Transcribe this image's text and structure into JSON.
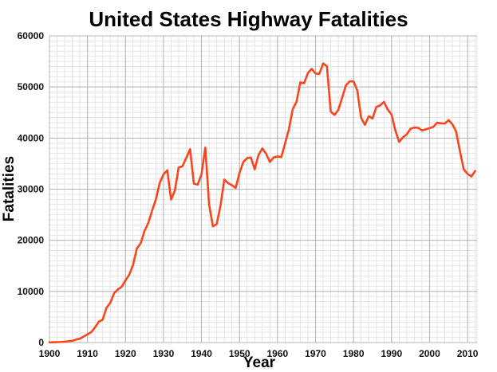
{
  "chart_data": {
    "type": "line",
    "title": "United States Highway Fatalities",
    "xlabel": "Year",
    "ylabel": "Fatalities",
    "xlim": [
      1900,
      2012.5
    ],
    "ylim": [
      0,
      60000
    ],
    "x_ticks": [
      1900,
      1910,
      1920,
      1930,
      1940,
      1950,
      1960,
      1970,
      1980,
      1990,
      2000,
      2010
    ],
    "y_ticks": [
      0,
      10000,
      20000,
      30000,
      40000,
      50000,
      60000
    ],
    "x_minor_step": 2,
    "y_minor_step": 1000,
    "grid": "major+minor",
    "legend": "none",
    "colors": {
      "line": "#fb451d",
      "minor_grid": "#e4e4e4",
      "major_grid": "#b4b4b4",
      "text": "#111111",
      "background": "#ffffff"
    },
    "x": [
      1900,
      1901,
      1902,
      1903,
      1904,
      1905,
      1906,
      1907,
      1908,
      1909,
      1910,
      1911,
      1912,
      1913,
      1914,
      1915,
      1916,
      1917,
      1918,
      1919,
      1920,
      1921,
      1922,
      1923,
      1924,
      1925,
      1926,
      1927,
      1928,
      1929,
      1930,
      1931,
      1932,
      1933,
      1934,
      1935,
      1936,
      1937,
      1938,
      1939,
      1940,
      1941,
      1942,
      1943,
      1944,
      1945,
      1946,
      1947,
      1948,
      1949,
      1950,
      1951,
      1952,
      1953,
      1954,
      1955,
      1956,
      1957,
      1958,
      1959,
      1960,
      1961,
      1962,
      1963,
      1964,
      1965,
      1966,
      1967,
      1968,
      1969,
      1970,
      1971,
      1972,
      1973,
      1974,
      1975,
      1976,
      1977,
      1978,
      1979,
      1980,
      1981,
      1982,
      1983,
      1984,
      1985,
      1986,
      1987,
      1988,
      1989,
      1990,
      1991,
      1992,
      1993,
      1994,
      1995,
      1996,
      1997,
      1998,
      1999,
      2000,
      2001,
      2002,
      2003,
      2004,
      2005,
      2006,
      2007,
      2008,
      2009,
      2010,
      2011,
      2012
    ],
    "series": [
      {
        "name": "Highway fatalities",
        "values": [
          36,
          54,
          79,
          117,
          172,
          252,
          338,
          581,
          751,
          1174,
          1599,
          2043,
          2968,
          4079,
          4468,
          6779,
          7766,
          9630,
          10390,
          10896,
          12155,
          13253,
          15224,
          18400,
          19400,
          21800,
          23400,
          25800,
          28000,
          31200,
          32900,
          33700,
          27979,
          29746,
          34240,
          34494,
          36126,
          37819,
          31083,
          30895,
          32914,
          38142,
          27007,
          22727,
          23165,
          26785,
          31874,
          31193,
          30775,
          30246,
          33186,
          35309,
          36088,
          36190,
          33890,
          36688,
          37965,
          36932,
          35331,
          36223,
          36399,
          36285,
          38980,
          41723,
          45645,
          47089,
          50894,
          50724,
          52725,
          53543,
          52627,
          52542,
          54589,
          54052,
          45196,
          44525,
          45523,
          47878,
          50331,
          51093,
          51091,
          49301,
          43945,
          42589,
          44257,
          43825,
          46087,
          46390,
          47087,
          45582,
          44599,
          41508,
          39250,
          40150,
          40716,
          41817,
          42065,
          42013,
          41501,
          41717,
          41945,
          42196,
          43005,
          42884,
          42836,
          43510,
          42708,
          41259,
          37423,
          33883,
          32999,
          32479,
          33561
        ]
      }
    ]
  }
}
